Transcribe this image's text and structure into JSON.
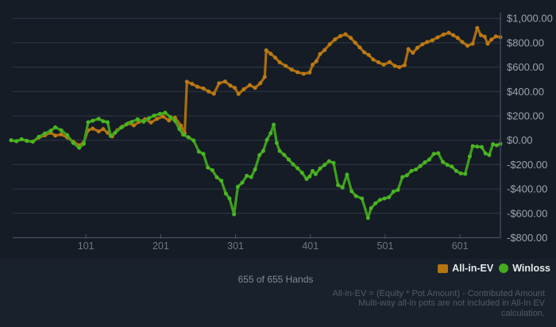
{
  "chart_data": {
    "type": "line",
    "x_axis": {
      "range": [
        1,
        655
      ],
      "ticks": [
        {
          "value": 101,
          "label": "101"
        },
        {
          "value": 201,
          "label": "201"
        },
        {
          "value": 301,
          "label": "301"
        },
        {
          "value": 401,
          "label": "401"
        },
        {
          "value": 501,
          "label": "501"
        },
        {
          "value": 601,
          "label": "601"
        }
      ]
    },
    "y_axis": {
      "range": [
        -800,
        1000
      ],
      "ticks": [
        {
          "value": 1000,
          "label": "$1,000.00"
        },
        {
          "value": 800,
          "label": "$800.00"
        },
        {
          "value": 600,
          "label": "$600.00"
        },
        {
          "value": 400,
          "label": "$400.00"
        },
        {
          "value": 200,
          "label": "$200.00"
        },
        {
          "value": 0,
          "label": "$0.00"
        },
        {
          "value": -200,
          "label": "-$200.00"
        },
        {
          "value": -400,
          "label": "-$400.00"
        },
        {
          "value": -600,
          "label": "-$600.00"
        },
        {
          "value": -800,
          "label": "-$800.00"
        }
      ]
    },
    "grid": "horizontal",
    "legend_position": "bottom-right",
    "series": [
      {
        "name": "All-in-EV",
        "color": "#ab6c0f",
        "dot_color": "#bc7b14",
        "points": [
          [
            1,
            0
          ],
          [
            8,
            -8
          ],
          [
            15,
            8
          ],
          [
            22,
            -5
          ],
          [
            30,
            -12
          ],
          [
            38,
            22
          ],
          [
            46,
            40
          ],
          [
            54,
            62
          ],
          [
            60,
            38
          ],
          [
            68,
            48
          ],
          [
            76,
            22
          ],
          [
            84,
            -12
          ],
          [
            92,
            -42
          ],
          [
            98,
            -18
          ],
          [
            104,
            82
          ],
          [
            110,
            96
          ],
          [
            118,
            72
          ],
          [
            124,
            92
          ],
          [
            130,
            62
          ],
          [
            136,
            32
          ],
          [
            143,
            82
          ],
          [
            150,
            112
          ],
          [
            158,
            140
          ],
          [
            165,
            122
          ],
          [
            172,
            152
          ],
          [
            180,
            172
          ],
          [
            188,
            146
          ],
          [
            196,
            176
          ],
          [
            204,
            195
          ],
          [
            212,
            162
          ],
          [
            220,
            186
          ],
          [
            228,
            120
          ],
          [
            233,
            58
          ],
          [
            236,
            480
          ],
          [
            243,
            462
          ],
          [
            250,
            440
          ],
          [
            258,
            425
          ],
          [
            265,
            400
          ],
          [
            272,
            382
          ],
          [
            279,
            468
          ],
          [
            287,
            482
          ],
          [
            294,
            448
          ],
          [
            300,
            430
          ],
          [
            305,
            380
          ],
          [
            312,
            418
          ],
          [
            320,
            452
          ],
          [
            327,
            430
          ],
          [
            334,
            468
          ],
          [
            340,
            520
          ],
          [
            342,
            738
          ],
          [
            348,
            710
          ],
          [
            354,
            678
          ],
          [
            360,
            640
          ],
          [
            368,
            610
          ],
          [
            376,
            580
          ],
          [
            384,
            558
          ],
          [
            392,
            545
          ],
          [
            400,
            556
          ],
          [
            404,
            620
          ],
          [
            409,
            648
          ],
          [
            414,
            708
          ],
          [
            420,
            740
          ],
          [
            427,
            788
          ],
          [
            434,
            828
          ],
          [
            441,
            855
          ],
          [
            448,
            870
          ],
          [
            455,
            840
          ],
          [
            461,
            800
          ],
          [
            467,
            762
          ],
          [
            473,
            722
          ],
          [
            479,
            700
          ],
          [
            485,
            662
          ],
          [
            492,
            640
          ],
          [
            499,
            620
          ],
          [
            507,
            642
          ],
          [
            514,
            610
          ],
          [
            520,
            600
          ],
          [
            527,
            616
          ],
          [
            532,
            748
          ],
          [
            538,
            718
          ],
          [
            544,
            758
          ],
          [
            551,
            788
          ],
          [
            557,
            806
          ],
          [
            564,
            820
          ],
          [
            571,
            844
          ],
          [
            579,
            868
          ],
          [
            586,
            882
          ],
          [
            592,
            862
          ],
          [
            598,
            840
          ],
          [
            604,
            806
          ],
          [
            611,
            776
          ],
          [
            618,
            792
          ],
          [
            624,
            922
          ],
          [
            629,
            862
          ],
          [
            634,
            850
          ],
          [
            638,
            792
          ],
          [
            643,
            826
          ],
          [
            649,
            852
          ],
          [
            655,
            846
          ]
        ]
      },
      {
        "name": "Winloss",
        "color": "#3fa01a",
        "dot_color": "#4cb424",
        "points": [
          [
            1,
            0
          ],
          [
            8,
            -8
          ],
          [
            15,
            8
          ],
          [
            22,
            -5
          ],
          [
            30,
            -12
          ],
          [
            38,
            28
          ],
          [
            46,
            55
          ],
          [
            54,
            78
          ],
          [
            60,
            106
          ],
          [
            68,
            82
          ],
          [
            76,
            42
          ],
          [
            84,
            -22
          ],
          [
            92,
            -62
          ],
          [
            98,
            -30
          ],
          [
            104,
            148
          ],
          [
            110,
            160
          ],
          [
            118,
            176
          ],
          [
            124,
            156
          ],
          [
            130,
            148
          ],
          [
            134,
            36
          ],
          [
            140,
            62
          ],
          [
            148,
            104
          ],
          [
            155,
            130
          ],
          [
            162,
            150
          ],
          [
            170,
            172
          ],
          [
            178,
            152
          ],
          [
            185,
            180
          ],
          [
            192,
            202
          ],
          [
            200,
            216
          ],
          [
            207,
            226
          ],
          [
            214,
            190
          ],
          [
            220,
            160
          ],
          [
            226,
            92
          ],
          [
            231,
            46
          ],
          [
            238,
            24
          ],
          [
            245,
            -2
          ],
          [
            252,
            -94
          ],
          [
            258,
            -112
          ],
          [
            264,
            -224
          ],
          [
            270,
            -246
          ],
          [
            276,
            -304
          ],
          [
            282,
            -332
          ],
          [
            288,
            -438
          ],
          [
            293,
            -478
          ],
          [
            299,
            -608
          ],
          [
            304,
            -382
          ],
          [
            310,
            -348
          ],
          [
            316,
            -292
          ],
          [
            322,
            -302
          ],
          [
            327,
            -240
          ],
          [
            333,
            -122
          ],
          [
            338,
            -88
          ],
          [
            343,
            4
          ],
          [
            348,
            58
          ],
          [
            352,
            128
          ],
          [
            356,
            -22
          ],
          [
            360,
            -88
          ],
          [
            366,
            -120
          ],
          [
            372,
            -158
          ],
          [
            378,
            -198
          ],
          [
            384,
            -230
          ],
          [
            390,
            -268
          ],
          [
            396,
            -318
          ],
          [
            400,
            -298
          ],
          [
            404,
            -252
          ],
          [
            408,
            -278
          ],
          [
            414,
            -232
          ],
          [
            420,
            -202
          ],
          [
            426,
            -172
          ],
          [
            432,
            -186
          ],
          [
            438,
            -368
          ],
          [
            444,
            -388
          ],
          [
            450,
            -282
          ],
          [
            456,
            -418
          ],
          [
            462,
            -458
          ],
          [
            470,
            -478
          ],
          [
            478,
            -638
          ],
          [
            482,
            -558
          ],
          [
            488,
            -518
          ],
          [
            494,
            -490
          ],
          [
            500,
            -478
          ],
          [
            506,
            -468
          ],
          [
            512,
            -422
          ],
          [
            518,
            -408
          ],
          [
            524,
            -302
          ],
          [
            530,
            -288
          ],
          [
            536,
            -252
          ],
          [
            542,
            -240
          ],
          [
            548,
            -212
          ],
          [
            554,
            -182
          ],
          [
            560,
            -158
          ],
          [
            566,
            -112
          ],
          [
            572,
            -106
          ],
          [
            578,
            -178
          ],
          [
            584,
            -202
          ],
          [
            590,
            -216
          ],
          [
            596,
            -252
          ],
          [
            602,
            -272
          ],
          [
            608,
            -276
          ],
          [
            614,
            -132
          ],
          [
            618,
            -48
          ],
          [
            624,
            -52
          ],
          [
            630,
            -56
          ],
          [
            635,
            -108
          ],
          [
            640,
            -122
          ],
          [
            645,
            -32
          ],
          [
            650,
            -42
          ],
          [
            655,
            -30
          ]
        ]
      }
    ]
  },
  "legend": {
    "allinev_label": "All-in-EV",
    "winloss_label": "Winloss"
  },
  "status": {
    "hands_label": "655 of 655 Hands"
  },
  "footnote": {
    "lines": [
      "All-in-EV = (Equity * Pot Amount) - Contributed Amount",
      "Multi-way all-in pots are not included in All-In EV",
      "calculation."
    ]
  },
  "colors": {
    "background": "#1d2834",
    "plot_background": "#151c26",
    "footer_background": "#19222c",
    "grid": "#2e3945",
    "axis": "#47525e",
    "y_tick_text": "#9ba3ac",
    "x_tick_text": "#6e7781",
    "status_text": "#828b95",
    "footnote_text": "#4f5a66",
    "legend_text": "#e6e8ea",
    "all_in_ev": "#ab6c0f",
    "winloss": "#3fa01a"
  }
}
